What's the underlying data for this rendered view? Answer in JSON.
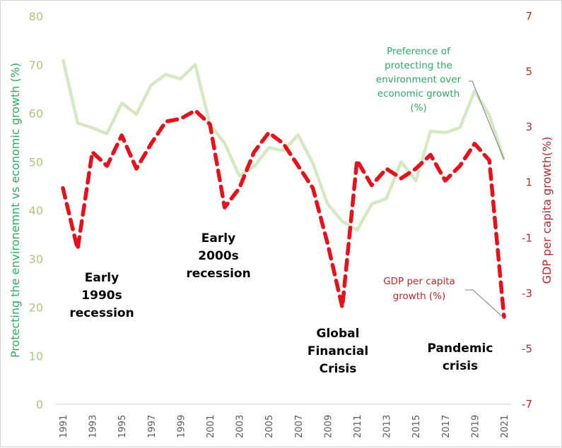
{
  "chart_data": {
    "type": "line",
    "title": "",
    "x": [
      1991,
      1992,
      1993,
      1994,
      1995,
      1996,
      1997,
      1998,
      1999,
      2000,
      2001,
      2002,
      2003,
      2004,
      2005,
      2006,
      2007,
      2008,
      2009,
      2010,
      2011,
      2012,
      2013,
      2014,
      2015,
      2016,
      2017,
      2018,
      2019,
      2020,
      2021
    ],
    "x_tick_labels": [
      "1991",
      "1993",
      "1995",
      "1997",
      "1999",
      "2001",
      "2003",
      "2005",
      "2007",
      "2009",
      "2011",
      "2013",
      "2015",
      "2017",
      "2019",
      "2021"
    ],
    "xlabel": "",
    "ylabel": "Protecting the environemnt vs economic growth (%)",
    "ylim": [
      0,
      80
    ],
    "y_ticks": [
      "0",
      "10",
      "20",
      "30",
      "40",
      "50",
      "60",
      "70",
      "80"
    ],
    "y2label": "GDP per capita growth(%)",
    "y2lim": [
      -7,
      7
    ],
    "y2_ticks": [
      "-7",
      "-5",
      "-3",
      "-1",
      "1",
      "3",
      "5",
      "7"
    ],
    "grid": false,
    "series": [
      {
        "name": "Preference of protecting the environment over economic growth (%)",
        "axis": "left",
        "color": "#d5e8c1",
        "style": "solid",
        "values": [
          71.1,
          58.0,
          57.0,
          55.8,
          62.1,
          59.8,
          65.8,
          68.0,
          67.1,
          70.0,
          57.7,
          53.8,
          47.1,
          49.0,
          52.9,
          52.3,
          55.5,
          49.7,
          41.3,
          37.7,
          35.9,
          41.3,
          42.4,
          50.0,
          46.1,
          56.3,
          56.0,
          57.0,
          64.6,
          59.6,
          50.4
        ]
      },
      {
        "name": "GDP per capita growth (%)",
        "axis": "right",
        "color": "#e8101a",
        "style": "dashed",
        "values": [
          0.8,
          -1.4,
          2.1,
          1.6,
          2.7,
          1.5,
          2.4,
          3.2,
          3.3,
          3.6,
          3.1,
          0.1,
          0.8,
          2.1,
          2.8,
          2.4,
          1.6,
          0.8,
          -1.2,
          -3.5,
          1.8,
          0.9,
          1.5,
          1.15,
          1.5,
          2.0,
          1.07,
          1.6,
          2.4,
          1.8,
          -3.85
        ]
      }
    ],
    "legend": {
      "placement": "inline-labels",
      "green_label": [
        "Preference of",
        "protecting the",
        "environment over",
        "economic growth",
        "(%)"
      ],
      "red_label": [
        "GDP per capita",
        "growth (%)"
      ]
    },
    "annotations": [
      {
        "id": "early-1990s",
        "lines": [
          "Early",
          "1990s",
          "recession"
        ]
      },
      {
        "id": "early-2000s",
        "lines": [
          "Early",
          "2000s",
          "recession"
        ]
      },
      {
        "id": "gfc",
        "lines": [
          "Global",
          "Financial",
          "Crisis"
        ]
      },
      {
        "id": "pandemic",
        "lines": [
          "Pandemic",
          "crisis"
        ]
      }
    ]
  }
}
